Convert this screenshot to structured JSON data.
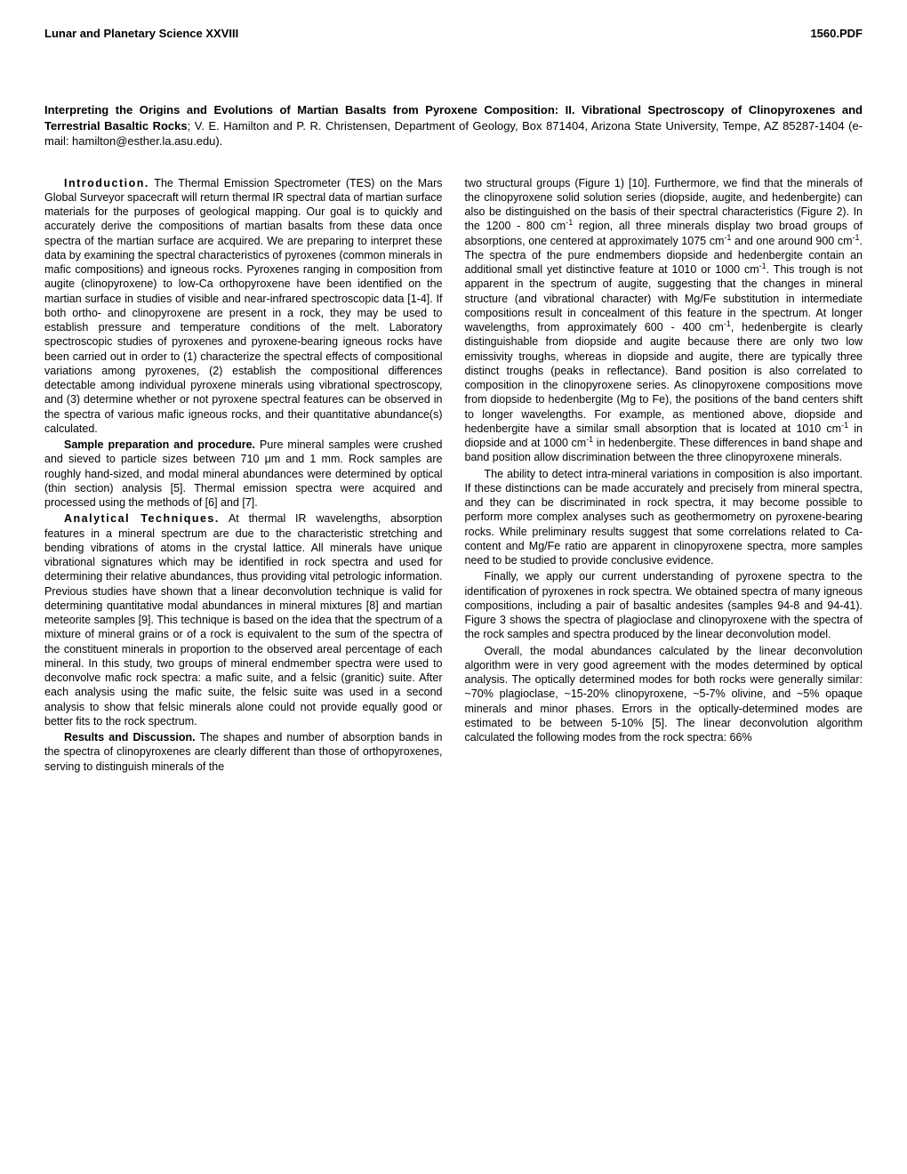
{
  "header": {
    "left": "Lunar and Planetary Science XXVIII",
    "right": "1560.PDF"
  },
  "title": {
    "bold": "Interpreting the Origins and Evolutions of Martian Basalts from Pyroxene Composition: II. Vibrational Spectroscopy of Clinopyroxenes and Terrestrial Basaltic Rocks",
    "authors": "; V. E. Hamilton and P. R. Christensen, Department of Geology, Box 871404, Arizona State University, Tempe, AZ 85287-1404  (e-mail: hamilton@esther.la.asu.edu)."
  },
  "col1": {
    "intro_head": "Introduction.",
    "intro_text": "  The Thermal Emission Spectrometer (TES) on the Mars Global Surveyor spacecraft will return thermal IR spectral data of martian surface materials for the purposes of geological mapping.  Our goal is to quickly and accurately derive the compositions of martian basalts from these data once spectra of the martian surface are acquired.  We are preparing to interpret these data by examining the spectral characteristics of pyroxenes (common minerals in mafic compositions) and igneous rocks.  Pyroxenes ranging in composition from augite (clinopyroxene) to low-Ca orthopyroxene have been identified on the martian surface in studies of visible and near-infrared spectroscopic data [1-4].  If both ortho- and clinopyroxene are present in a rock, they may be used to establish pressure and temperature conditions of the melt.  Laboratory spectroscopic studies of pyroxenes and pyroxene-bearing igneous rocks have been carried out in order to (1) characterize the spectral effects of compositional variations among pyroxenes, (2) establish the compositional differences detectable among individual pyroxene minerals using vibrational spectroscopy, and (3) determine whether or not pyroxene spectral features can be observed in the spectra of various mafic igneous rocks, and their quantitative abundance(s) calculated.",
    "sample_head": "Sample preparation and procedure.",
    "sample_text": "  Pure mineral samples were crushed and sieved to particle sizes between 710 μm and 1 mm.  Rock samples are roughly hand-sized, and modal mineral abundances were determined by optical (thin section) analysis [5].  Thermal emission spectra were acquired and processed using the methods of [6] and [7].",
    "analytical_head": "Analytical Techniques.",
    "analytical_text": "  At thermal IR wavelengths, absorption features in a mineral spectrum are due to the characteristic stretching and bending vibrations of atoms in the crystal lattice.  All minerals have unique vibrational signatures which may be identified in rock spectra and used for determining their relative abundances, thus providing vital petrologic information.  Previous studies have shown that a linear deconvolution technique is valid for determining quantitative modal abundances in mineral mixtures [8] and martian meteorite samples [9].  This technique is based on the idea that the spectrum of a mixture of mineral grains or of a rock is equivalent to the sum of the spectra of the constituent minerals in proportion to the observed areal percentage of each mineral.  In this study, two groups of mineral endmember spectra were used to deconvolve mafic rock spectra: a mafic suite, and a felsic (granitic) suite. After each analysis using the mafic suite, the felsic suite was used in a second analysis to show that felsic minerals alone could not provide equally good or better fits to the rock spectrum.",
    "results_head": "Results and Discussion.",
    "results_text": "  The shapes and number of absorption bands in the spectra of clinopyroxenes are clearly different than those of orthopyroxenes, serving to distinguish minerals of the"
  },
  "col2": {
    "p1a": "two structural groups (Figure 1) [10].  Furthermore, we find that the minerals of the clinopyroxene solid solution series (diopside, augite, and hedenbergite) can also be distinguished on the basis of their spectral characteristics (Figure 2).  In the 1200 - 800 cm",
    "p1b": " region, all three minerals display two broad groups of absorptions, one centered at approximately 1075 cm",
    "p1c": " and one around 900 cm",
    "p1d": ".  The spectra of the pure endmembers diopside and hedenbergite contain an additional small yet distinctive feature at 1010 or 1000 cm",
    "p1e": ".  This trough is not apparent in the spectrum of augite, suggesting that the changes in mineral structure (and vibrational character) with Mg/Fe substitution in intermediate compositions result in concealment of this feature in the spectrum.  At longer wavelengths, from approximately 600 - 400 cm",
    "p1f": ", hedenbergite is clearly distinguishable from diopside and augite because there are only two low emissivity troughs, whereas in diopside and augite, there are typically three distinct troughs (peaks in reflectance).  Band position is also correlated to composition in the clinopyroxene series.  As clinopyroxene compositions move from diopside to hedenbergite (Mg to Fe), the positions of the band centers shift to longer wavelengths.  For example, as mentioned above, diopside and hedenbergite have a similar small absorption that is located at 1010 cm",
    "p1g": " in diopside and at 1000 cm",
    "p1h": " in hedenbergite.  These differences in band shape and band position allow discrimination between the three clinopyroxene minerals.",
    "p2": "The ability to detect intra-mineral variations in composition is also important.  If these distinctions can be made accurately and precisely from mineral spectra, and they can be discriminated in rock spectra, it may become possible to perform more complex analyses such as geothermometry on pyroxene-bearing rocks.  While preliminary results suggest that some correlations related to Ca-content and Mg/Fe ratio are apparent in clinopyroxene spectra, more samples need to be studied to provide conclusive evidence.",
    "p3": "Finally, we apply our current understanding of pyroxene spectra to the identification of pyroxenes in rock spectra.  We obtained spectra of many igneous compositions, including a pair of basaltic andesites (samples 94-8 and 94-41).  Figure 3 shows the spectra of plagioclase and clinopyroxene with the spectra of the rock samples and spectra produced by the linear deconvolution model.",
    "p4": "Overall, the modal abundances calculated by the linear deconvolution algorithm were in very good agreement with the modes determined by optical analysis.  The optically determined modes for both rocks were generally similar:  ~70% plagioclase, ~15-20% clinopyroxene, ~5-7% olivine, and ~5% opaque minerals and minor phases.  Errors in the optically-determined modes are estimated to be between 5-10% [5].  The linear deconvolution algorithm calculated the following modes from the rock spectra:  66%",
    "sup": "-1"
  }
}
